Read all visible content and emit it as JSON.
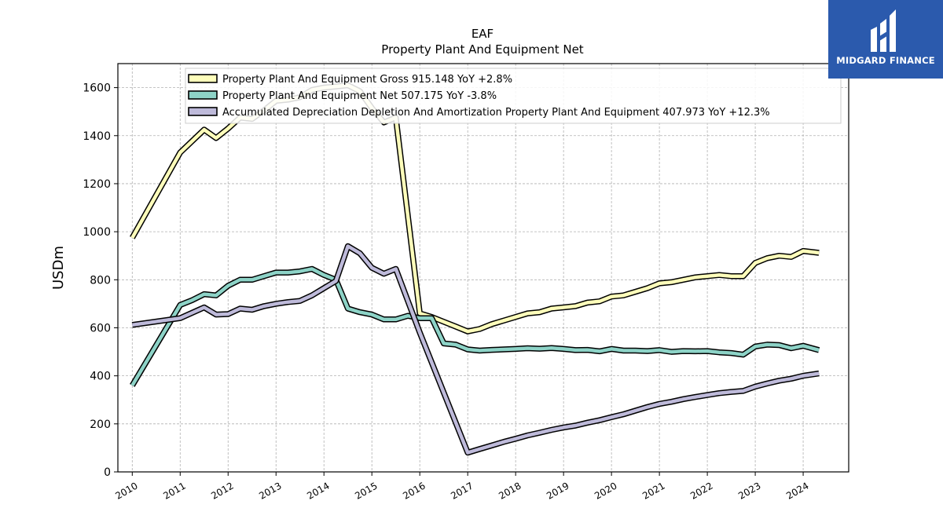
{
  "brand": {
    "name": "MIDGARD FINANCE",
    "bg_color": "#2b5aad"
  },
  "chart_data": {
    "type": "line",
    "title": "EAF",
    "subtitle": "Property Plant And Equipment Net",
    "ylabel": "USDm",
    "xlabel": "",
    "ylim": [
      0,
      1700
    ],
    "xlim": [
      2009.7,
      2024.95
    ],
    "yticks": [
      0,
      200,
      400,
      600,
      800,
      1000,
      1200,
      1400,
      1600
    ],
    "xticks": [
      "2010",
      "2011",
      "2012",
      "2013",
      "2014",
      "2015",
      "2016",
      "2017",
      "2018",
      "2019",
      "2020",
      "2021",
      "2022",
      "2023",
      "2024"
    ],
    "grid": true,
    "legend_position": "top",
    "series": [
      {
        "name": "Property Plant And Equipment Gross",
        "legend": "Property Plant And Equipment Gross  915.148 YoY +2.8%",
        "color": "#ffffbb",
        "x": [
          2010.0,
          2011.0,
          2011.5,
          2011.75,
          2012.0,
          2012.25,
          2012.5,
          2012.75,
          2013.0,
          2013.25,
          2013.5,
          2013.75,
          2014.0,
          2014.25,
          2014.5,
          2014.75,
          2015.0,
          2015.25,
          2015.5,
          2016.0,
          2016.25,
          2016.5,
          2016.75,
          2017.0,
          2017.25,
          2017.5,
          2017.75,
          2018.0,
          2018.25,
          2018.5,
          2018.75,
          2019.0,
          2019.25,
          2019.5,
          2019.75,
          2020.0,
          2020.25,
          2020.5,
          2020.75,
          2021.0,
          2021.25,
          2021.5,
          2021.75,
          2022.0,
          2022.25,
          2022.5,
          2022.75,
          2023.0,
          2023.25,
          2023.5,
          2023.75,
          2024.0,
          2024.33
        ],
        "values": [
          975,
          1330,
          1425,
          1390,
          1430,
          1475,
          1470,
          1505,
          1545,
          1550,
          1560,
          1590,
          1600,
          1605,
          1610,
          1585,
          1515,
          1455,
          1475,
          660,
          645,
          625,
          605,
          585,
          595,
          615,
          630,
          645,
          660,
          665,
          680,
          685,
          690,
          705,
          710,
          730,
          735,
          750,
          765,
          785,
          790,
          800,
          810,
          815,
          820,
          815,
          815,
          870,
          890,
          900,
          895,
          920,
          912
        ]
      },
      {
        "name": "Property Plant And Equipment Net",
        "legend": "Property Plant And Equipment Net  507.175 YoY -3.8%",
        "color": "#8dd3c7",
        "x": [
          2010.0,
          2011.0,
          2011.25,
          2011.5,
          2011.75,
          2012.0,
          2012.25,
          2012.5,
          2012.75,
          2013.0,
          2013.25,
          2013.5,
          2013.75,
          2014.0,
          2014.25,
          2014.5,
          2014.75,
          2015.0,
          2015.25,
          2015.5,
          2015.75,
          2016.0,
          2016.25,
          2016.5,
          2016.75,
          2017.0,
          2017.25,
          2017.5,
          2017.75,
          2018.0,
          2018.25,
          2018.5,
          2018.75,
          2019.0,
          2019.25,
          2019.5,
          2019.75,
          2020.0,
          2020.25,
          2020.5,
          2020.75,
          2021.0,
          2021.25,
          2021.5,
          2021.75,
          2022.0,
          2022.25,
          2022.5,
          2022.75,
          2023.0,
          2023.25,
          2023.5,
          2023.75,
          2024.0,
          2024.33
        ],
        "values": [
          360,
          695,
          715,
          740,
          735,
          775,
          800,
          800,
          815,
          830,
          830,
          835,
          845,
          820,
          800,
          680,
          665,
          655,
          635,
          635,
          650,
          640,
          640,
          535,
          530,
          510,
          505,
          508,
          510,
          512,
          515,
          513,
          516,
          512,
          507,
          508,
          502,
          512,
          505,
          505,
          503,
          507,
          500,
          503,
          502,
          503,
          498,
          495,
          488,
          522,
          530,
          528,
          515,
          525,
          507
        ]
      },
      {
        "name": "Accumulated Depreciation Depletion And Amortization Property Plant And Equipment",
        "legend": "Accumulated Depreciation Depletion And Amortization Property Plant And Equipment  407.973 YoY +12.3%",
        "color": "#bebada",
        "x": [
          2010.0,
          2011.0,
          2011.5,
          2011.75,
          2012.0,
          2012.25,
          2012.5,
          2012.75,
          2013.0,
          2013.25,
          2013.5,
          2013.75,
          2014.0,
          2014.25,
          2014.5,
          2014.75,
          2015.0,
          2015.25,
          2015.5,
          2016.0,
          2017.0,
          2017.25,
          2017.5,
          2017.75,
          2018.0,
          2018.25,
          2018.5,
          2018.75,
          2019.0,
          2019.25,
          2019.5,
          2019.75,
          2020.0,
          2020.25,
          2020.5,
          2020.75,
          2021.0,
          2021.25,
          2021.5,
          2021.75,
          2022.0,
          2022.25,
          2022.5,
          2022.75,
          2023.0,
          2023.25,
          2023.5,
          2023.75,
          2024.0,
          2024.33
        ],
        "values": [
          612,
          640,
          685,
          655,
          657,
          680,
          675,
          690,
          700,
          707,
          712,
          735,
          765,
          795,
          940,
          910,
          850,
          825,
          845,
          580,
          80,
          95,
          110,
          125,
          138,
          152,
          163,
          175,
          185,
          193,
          205,
          215,
          228,
          240,
          255,
          270,
          283,
          292,
          303,
          312,
          320,
          328,
          333,
          337,
          355,
          368,
          380,
          388,
          400,
          410
        ]
      }
    ]
  }
}
